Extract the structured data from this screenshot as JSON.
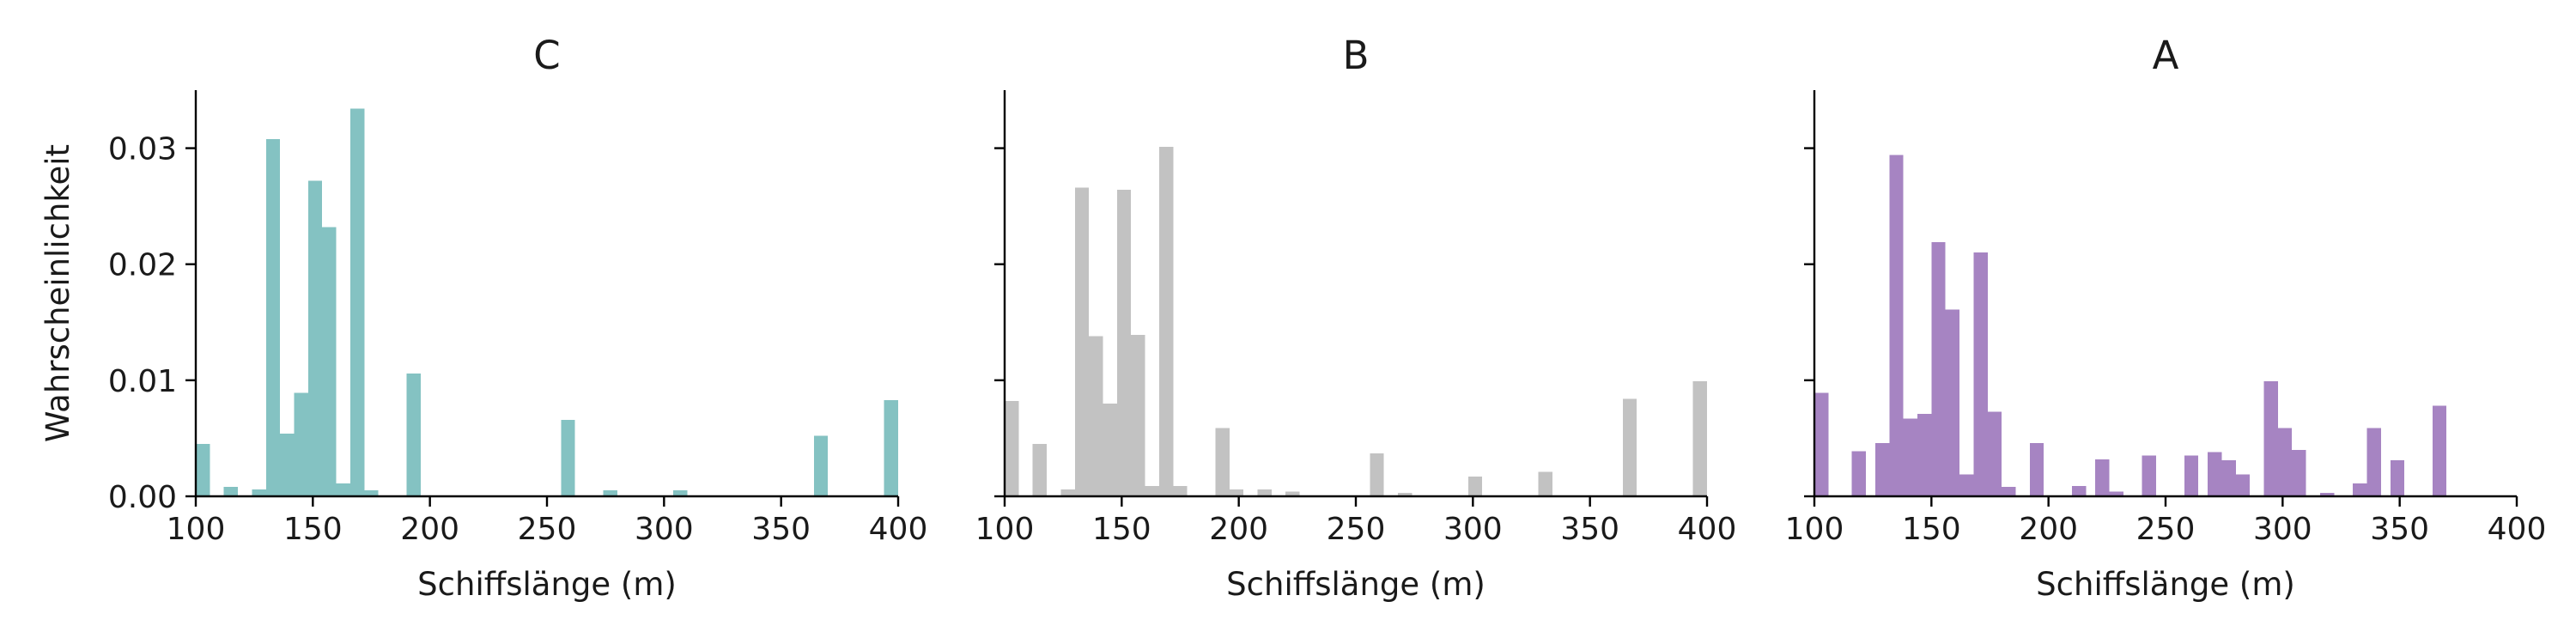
{
  "chart_data": [
    {
      "type": "bar",
      "title": "C",
      "xlabel": "Schiffslänge (m)",
      "ylabel": "Wahrscheinlichkeit",
      "xlim": [
        100,
        400
      ],
      "ylim": [
        0,
        0.035
      ],
      "xticks": [
        "100",
        "150",
        "200",
        "250",
        "300",
        "350",
        "400"
      ],
      "yticks": [
        "0.00",
        "0.01",
        "0.02",
        "0.03"
      ],
      "color": "#84c2c2",
      "bin_width": 6,
      "bins": [
        [
          100,
          0.0045
        ],
        [
          112,
          0.0008
        ],
        [
          124,
          0.0006
        ],
        [
          130,
          0.0308
        ],
        [
          136,
          0.0054
        ],
        [
          142,
          0.0089
        ],
        [
          148,
          0.0272
        ],
        [
          154,
          0.0232
        ],
        [
          160,
          0.0011
        ],
        [
          166,
          0.0334
        ],
        [
          172,
          0.0005
        ],
        [
          190,
          0.0106
        ],
        [
          256,
          0.0066
        ],
        [
          274,
          0.0005
        ],
        [
          304,
          0.0005
        ],
        [
          364,
          0.0052
        ],
        [
          394,
          0.0083
        ]
      ]
    },
    {
      "type": "bar",
      "title": "B",
      "xlabel": "Schiffslänge (m)",
      "ylabel": "",
      "xlim": [
        100,
        400
      ],
      "ylim": [
        0,
        0.035
      ],
      "xticks": [
        "100",
        "150",
        "200",
        "250",
        "300",
        "350",
        "400"
      ],
      "yticks": [
        "",
        "",
        "",
        ""
      ],
      "color": "#c2c2c2",
      "bin_width": 6,
      "bins": [
        [
          100,
          0.0082
        ],
        [
          112,
          0.0045
        ],
        [
          124,
          0.0006
        ],
        [
          130,
          0.0266
        ],
        [
          136,
          0.0138
        ],
        [
          142,
          0.008
        ],
        [
          148,
          0.0264
        ],
        [
          154,
          0.0139
        ],
        [
          160,
          0.0009
        ],
        [
          166,
          0.0301
        ],
        [
          172,
          0.0009
        ],
        [
          190,
          0.0059
        ],
        [
          196,
          0.0006
        ],
        [
          208,
          0.0006
        ],
        [
          220,
          0.0004
        ],
        [
          256,
          0.0037
        ],
        [
          268,
          0.0003
        ],
        [
          298,
          0.0017
        ],
        [
          328,
          0.0021
        ],
        [
          364,
          0.0084
        ],
        [
          394,
          0.0099
        ]
      ]
    },
    {
      "type": "bar",
      "title": "A",
      "xlabel": "Schiffslänge (m)",
      "ylabel": "",
      "xlim": [
        100,
        400
      ],
      "ylim": [
        0,
        0.035
      ],
      "xticks": [
        "100",
        "150",
        "200",
        "250",
        "300",
        "350",
        "400"
      ],
      "yticks": [
        "",
        "",
        "",
        ""
      ],
      "color": "#a684c2",
      "bin_width": 6,
      "bins": [
        [
          100,
          0.0089
        ],
        [
          116,
          0.0039
        ],
        [
          126,
          0.0046
        ],
        [
          132,
          0.0294
        ],
        [
          138,
          0.0067
        ],
        [
          144,
          0.0071
        ],
        [
          150,
          0.0219
        ],
        [
          156,
          0.0161
        ],
        [
          162,
          0.0019
        ],
        [
          168,
          0.021
        ],
        [
          174,
          0.0073
        ],
        [
          180,
          0.0008
        ],
        [
          192,
          0.0046
        ],
        [
          210,
          0.0009
        ],
        [
          220,
          0.0032
        ],
        [
          226,
          0.0004
        ],
        [
          240,
          0.0035
        ],
        [
          258,
          0.0035
        ],
        [
          268,
          0.0038
        ],
        [
          274,
          0.0031
        ],
        [
          280,
          0.0019
        ],
        [
          292,
          0.0099
        ],
        [
          298,
          0.0059
        ],
        [
          304,
          0.004
        ],
        [
          316,
          0.0003
        ],
        [
          330,
          0.0011
        ],
        [
          336,
          0.0059
        ],
        [
          346,
          0.0031
        ],
        [
          364,
          0.0078
        ]
      ]
    }
  ]
}
